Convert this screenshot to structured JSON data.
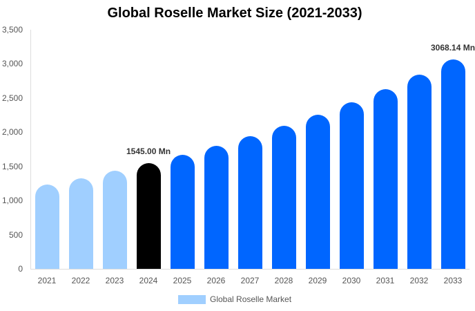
{
  "chart_data": {
    "type": "bar",
    "title": "Global Roselle Market Size (2021-2033)",
    "xlabel": "",
    "ylabel": "",
    "ylim": [
      0,
      3500
    ],
    "yticks": [
      "0",
      "500",
      "1,000",
      "1,500",
      "2,000",
      "2,500",
      "3,000",
      "3,500"
    ],
    "categories": [
      "2021",
      "2022",
      "2023",
      "2024",
      "2025",
      "2026",
      "2027",
      "2028",
      "2029",
      "2030",
      "2031",
      "2032",
      "2033"
    ],
    "series": [
      {
        "name": "Global Roselle Market",
        "values": [
          1230,
          1327,
          1432,
          1545.0,
          1667,
          1799,
          1941,
          2094,
          2260,
          2438,
          2631,
          2839,
          3068.14
        ]
      }
    ],
    "annotations": [
      {
        "category": "2024",
        "text": "1545.00 Mn"
      },
      {
        "category": "2033",
        "text": "3068.14 Mn"
      }
    ],
    "legend": {
      "position": "bottom",
      "entries": [
        "Global Roselle Market"
      ]
    },
    "grid": false,
    "colors": {
      "historical": "#a0cfff",
      "base_year": "#000000",
      "forecast": "#0066ff"
    }
  }
}
